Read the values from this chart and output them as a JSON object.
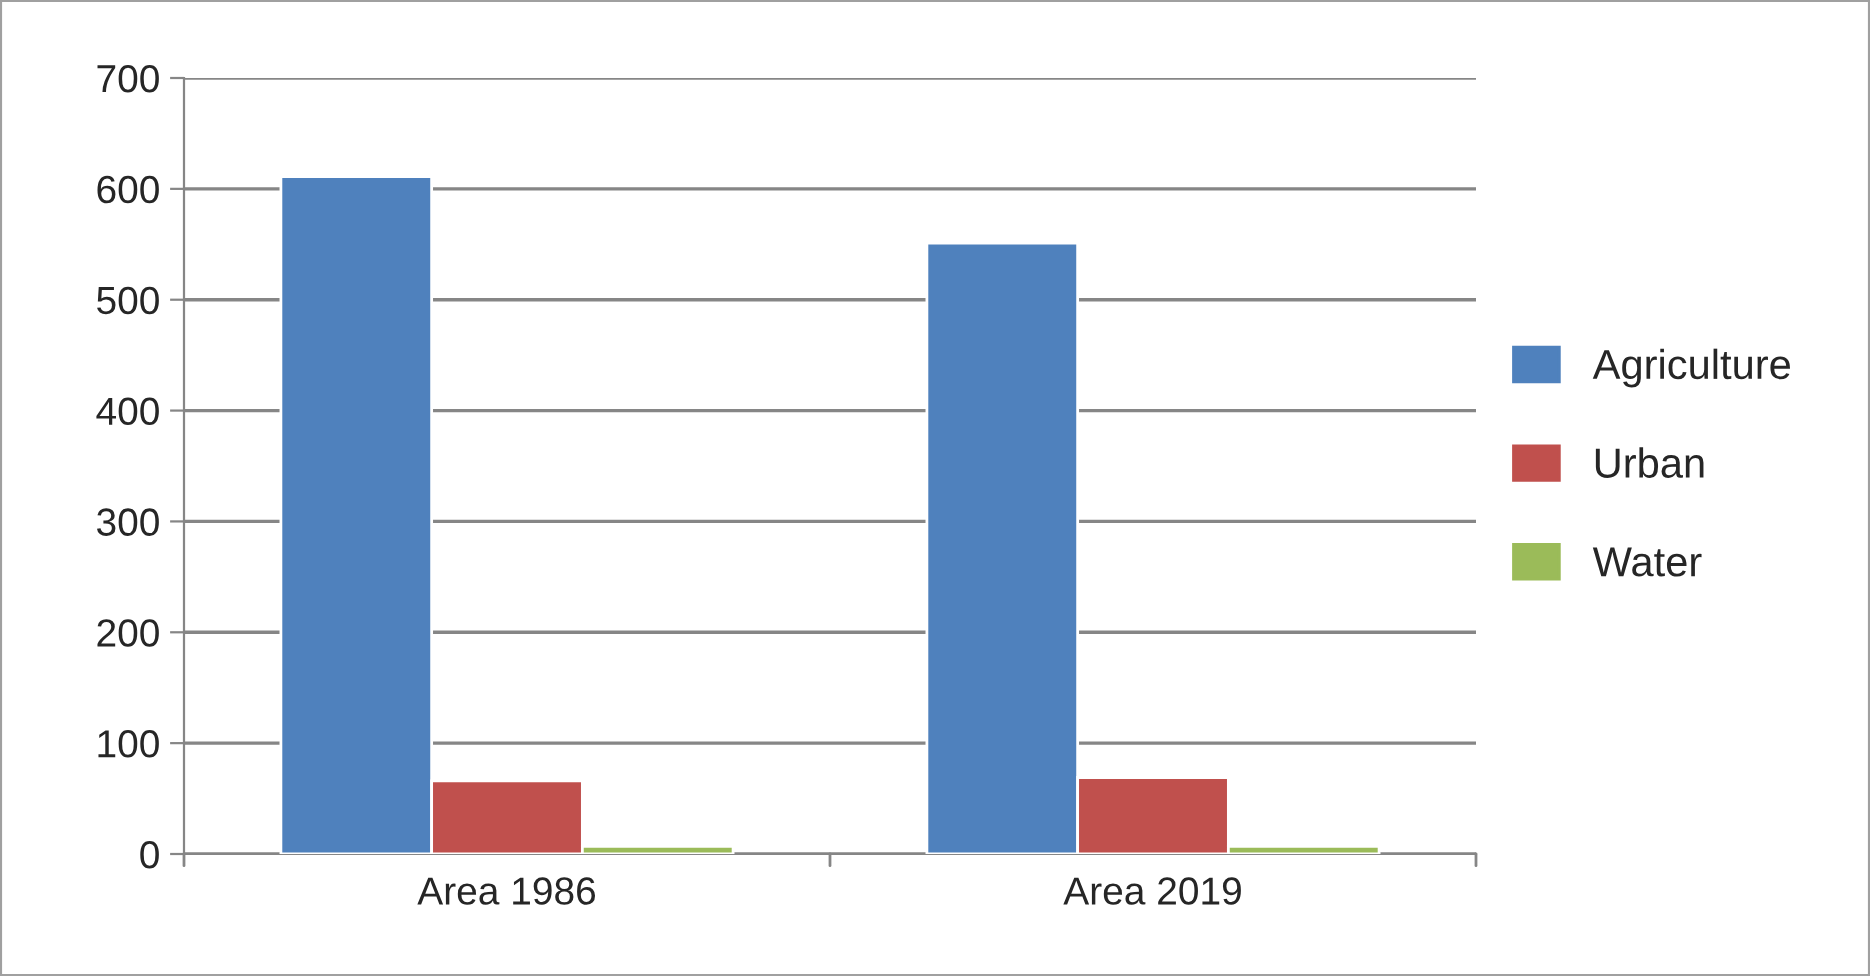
{
  "chart_data": {
    "type": "bar",
    "categories": [
      "Area 1986",
      "Area 2019"
    ],
    "series": [
      {
        "name": "Agriculture",
        "color": "#4f81bd",
        "values": [
          611,
          551
        ]
      },
      {
        "name": "Urban",
        "color": "#c0504d",
        "values": [
          66,
          69
        ]
      },
      {
        "name": "Water",
        "color": "#9bbb59",
        "values": [
          7,
          7
        ]
      }
    ],
    "ylim": [
      0,
      700
    ],
    "yticks": [
      0,
      100,
      200,
      300,
      400,
      500,
      600,
      700
    ],
    "grid": "y",
    "legend": "right"
  }
}
